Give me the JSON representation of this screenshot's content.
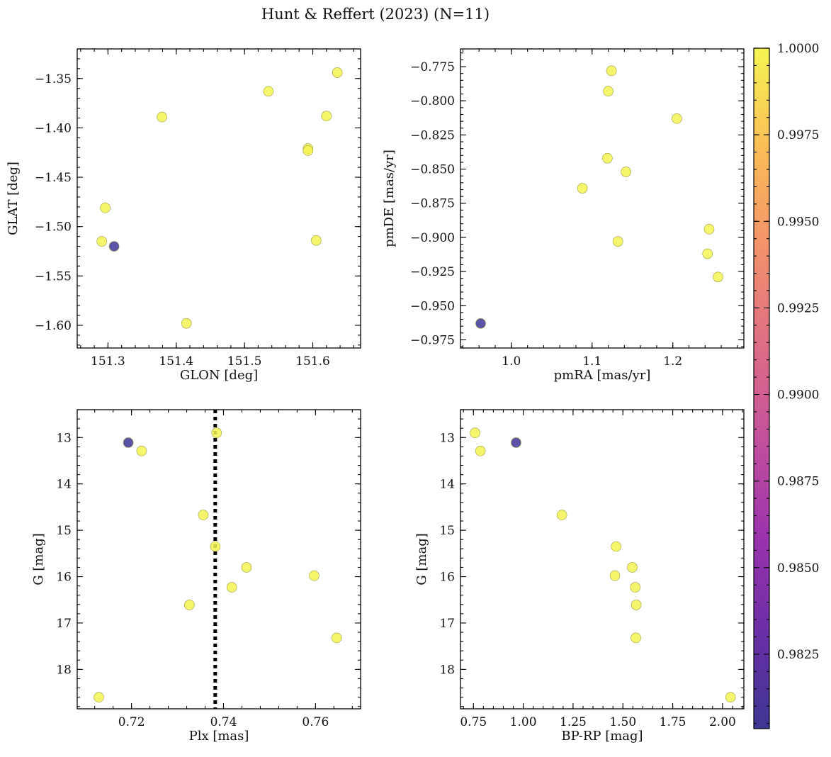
{
  "figure_title": "Hunt & Reffert (2023) (N=11)",
  "colorbar": {
    "min": 0.98035,
    "max": 1.0,
    "ticks": [
      0.9825,
      0.985,
      0.9875,
      0.99,
      0.9925,
      0.995,
      0.9975,
      1.0
    ],
    "tick_labels": [
      "0.9825",
      "0.9850",
      "0.9875",
      "0.9900",
      "0.9925",
      "0.9950",
      "0.9975",
      "1.0000"
    ],
    "colormap": "plasma"
  },
  "chart_data": [
    {
      "type": "scatter",
      "id": "glon-glat",
      "xlabel": "GLON [deg]",
      "ylabel": "GLAT [deg]",
      "xlim": [
        151.255,
        151.67
      ],
      "ylim": [
        -1.623,
        -1.32
      ],
      "y_inverted": false,
      "xticks": [
        151.3,
        151.4,
        151.5,
        151.6
      ],
      "xtick_labels": [
        "151.3",
        "151.4",
        "151.5",
        "151.6"
      ],
      "yticks": [
        -1.35,
        -1.4,
        -1.45,
        -1.5,
        -1.55,
        -1.6
      ],
      "ytick_labels": [
        "−1.35",
        "−1.40",
        "−1.45",
        "−1.50",
        "−1.55",
        "−1.60"
      ],
      "points": [
        {
          "x": 151.636,
          "y": -1.344,
          "c": 1.0
        },
        {
          "x": 151.535,
          "y": -1.363,
          "c": 1.0
        },
        {
          "x": 151.379,
          "y": -1.389,
          "c": 1.0
        },
        {
          "x": 151.62,
          "y": -1.388,
          "c": 1.0
        },
        {
          "x": 151.593,
          "y": -1.421,
          "c": 1.0
        },
        {
          "x": 151.593,
          "y": -1.423,
          "c": 1.0
        },
        {
          "x": 151.296,
          "y": -1.481,
          "c": 1.0
        },
        {
          "x": 151.291,
          "y": -1.515,
          "c": 1.0
        },
        {
          "x": 151.309,
          "y": -1.52,
          "c": 0.9804
        },
        {
          "x": 151.605,
          "y": -1.514,
          "c": 1.0
        },
        {
          "x": 151.415,
          "y": -1.598,
          "c": 1.0
        }
      ]
    },
    {
      "type": "scatter",
      "id": "pmra-pmde",
      "xlabel": "pmRA [mas/yr]",
      "ylabel": "pmDE [mas/yr]",
      "xlim": [
        0.937,
        1.288
      ],
      "ylim": [
        -0.981,
        -0.762
      ],
      "y_inverted": false,
      "xticks": [
        1.0,
        1.1,
        1.2
      ],
      "xtick_labels": [
        "1.0",
        "1.1",
        "1.2"
      ],
      "yticks": [
        -0.775,
        -0.8,
        -0.825,
        -0.85,
        -0.875,
        -0.9,
        -0.925,
        -0.95,
        -0.975
      ],
      "ytick_labels": [
        "−0.775",
        "−0.800",
        "−0.825",
        "−0.850",
        "−0.875",
        "−0.900",
        "−0.925",
        "−0.950",
        "−0.975"
      ],
      "points": [
        {
          "x": 1.124,
          "y": -0.778,
          "c": 1.0
        },
        {
          "x": 1.12,
          "y": -0.793,
          "c": 1.0
        },
        {
          "x": 1.205,
          "y": -0.813,
          "c": 1.0
        },
        {
          "x": 1.119,
          "y": -0.842,
          "c": 1.0
        },
        {
          "x": 1.142,
          "y": -0.852,
          "c": 1.0
        },
        {
          "x": 1.088,
          "y": -0.864,
          "c": 1.0
        },
        {
          "x": 1.245,
          "y": -0.894,
          "c": 1.0
        },
        {
          "x": 1.132,
          "y": -0.903,
          "c": 1.0
        },
        {
          "x": 1.243,
          "y": -0.912,
          "c": 1.0
        },
        {
          "x": 1.256,
          "y": -0.929,
          "c": 1.0
        },
        {
          "x": 0.962,
          "y": -0.963,
          "c": 0.9804
        }
      ]
    },
    {
      "type": "scatter",
      "id": "plx-g",
      "xlabel": "Plx [mas]",
      "ylabel": "G [mag]",
      "xlim": [
        0.7082,
        0.7698
      ],
      "ylim": [
        12.4,
        18.85
      ],
      "y_inverted": true,
      "xticks": [
        0.72,
        0.74,
        0.76
      ],
      "xtick_labels": [
        "0.72",
        "0.74",
        "0.76"
      ],
      "yticks": [
        13,
        14,
        15,
        16,
        17,
        18
      ],
      "ytick_labels": [
        "13",
        "14",
        "15",
        "16",
        "17",
        "18"
      ],
      "vline": {
        "x": 0.7382,
        "style": "dotted"
      },
      "points": [
        {
          "x": 0.7385,
          "y": 12.9,
          "c": 1.0
        },
        {
          "x": 0.7193,
          "y": 13.11,
          "c": 0.9804
        },
        {
          "x": 0.7222,
          "y": 13.29,
          "c": 1.0
        },
        {
          "x": 0.7356,
          "y": 14.67,
          "c": 1.0
        },
        {
          "x": 0.7382,
          "y": 15.35,
          "c": 1.0
        },
        {
          "x": 0.745,
          "y": 15.8,
          "c": 1.0
        },
        {
          "x": 0.7597,
          "y": 15.98,
          "c": 1.0
        },
        {
          "x": 0.7418,
          "y": 16.23,
          "c": 1.0
        },
        {
          "x": 0.7326,
          "y": 16.61,
          "c": 1.0
        },
        {
          "x": 0.7646,
          "y": 17.32,
          "c": 1.0
        },
        {
          "x": 0.7129,
          "y": 18.6,
          "c": 1.0
        }
      ]
    },
    {
      "type": "scatter",
      "id": "bprp-g",
      "xlabel": "BP-RP [mag]",
      "ylabel": "G [mag]",
      "xlim": [
        0.685,
        2.107
      ],
      "ylim": [
        12.4,
        18.85
      ],
      "y_inverted": true,
      "xticks": [
        0.75,
        1.0,
        1.25,
        1.5,
        1.75,
        2.0
      ],
      "xtick_labels": [
        "0.75",
        "1.00",
        "1.25",
        "1.50",
        "1.75",
        "2.00"
      ],
      "yticks": [
        13,
        14,
        15,
        16,
        17,
        18
      ],
      "ytick_labels": [
        "13",
        "14",
        "15",
        "16",
        "17",
        "18"
      ],
      "points": [
        {
          "x": 0.758,
          "y": 12.9,
          "c": 1.0
        },
        {
          "x": 0.964,
          "y": 13.11,
          "c": 0.9804
        },
        {
          "x": 0.785,
          "y": 13.29,
          "c": 1.0
        },
        {
          "x": 1.194,
          "y": 14.67,
          "c": 1.0
        },
        {
          "x": 1.466,
          "y": 15.35,
          "c": 1.0
        },
        {
          "x": 1.547,
          "y": 15.8,
          "c": 1.0
        },
        {
          "x": 1.46,
          "y": 15.98,
          "c": 1.0
        },
        {
          "x": 1.562,
          "y": 16.23,
          "c": 1.0
        },
        {
          "x": 1.567,
          "y": 16.61,
          "c": 1.0
        },
        {
          "x": 1.565,
          "y": 17.32,
          "c": 1.0
        },
        {
          "x": 2.04,
          "y": 18.6,
          "c": 1.0
        }
      ]
    }
  ]
}
